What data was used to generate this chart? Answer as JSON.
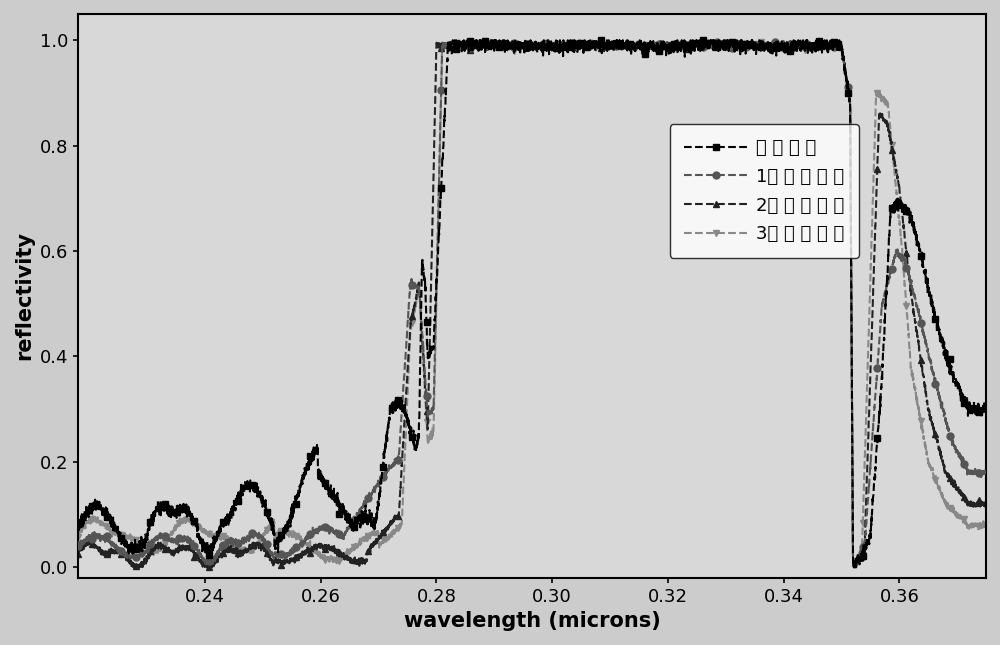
{
  "title": "",
  "xlabel": "wavelength (microns)",
  "ylabel": "reflectivity",
  "xlim": [
    0.218,
    0.375
  ],
  "ylim": [
    -0.02,
    1.05
  ],
  "xticks": [
    0.24,
    0.26,
    0.28,
    0.3,
    0.32,
    0.34,
    0.36
  ],
  "yticks": [
    0.0,
    0.2,
    0.4,
    0.6,
    0.8,
    1.0
  ],
  "legend_labels": [
    "无 反 射 层",
    "1周 期 反 射 层",
    "2周 期 反 射 层",
    "3周 期 反 射 层"
  ],
  "colors": [
    "#000000",
    "#555555",
    "#333333",
    "#999999"
  ],
  "background_color": "#e8e8e8",
  "font_size_labels": 15,
  "font_size_ticks": 13,
  "font_size_legend": 13
}
